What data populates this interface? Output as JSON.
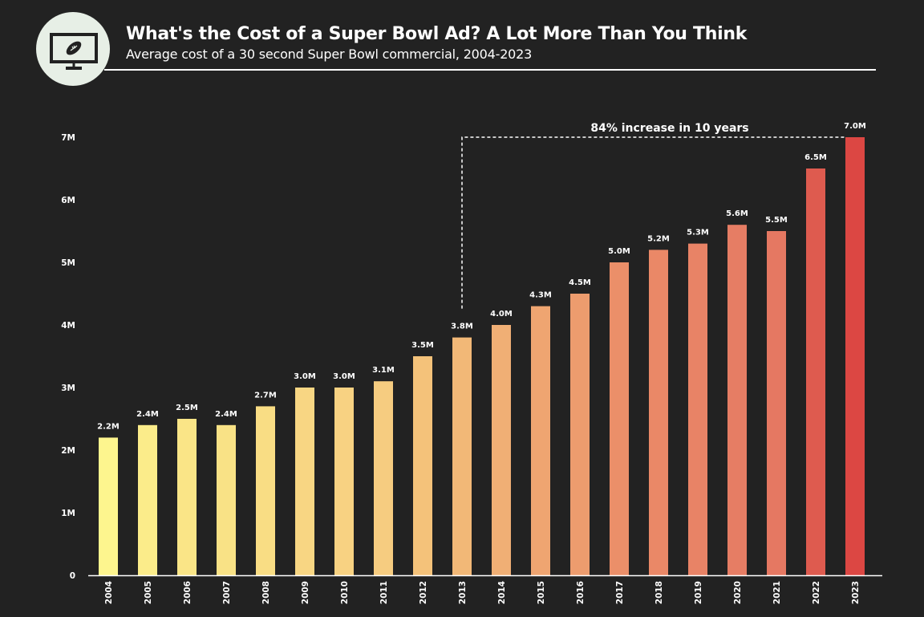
{
  "header": {
    "title": "What's the Cost of a Super Bowl Ad? A Lot More Than You Think",
    "subtitle": "Average cost of a 30 second Super Bowl commercial, 2004-2023",
    "logo_icon": "tv-football-icon"
  },
  "chart_data": {
    "type": "bar",
    "title": "What's the Cost of a Super Bowl Ad? A Lot More Than You Think",
    "subtitle": "Average cost of a 30 second Super Bowl commercial, 2004-2023",
    "xlabel": "",
    "ylabel": "",
    "categories": [
      "2004",
      "2005",
      "2006",
      "2007",
      "2008",
      "2009",
      "2010",
      "2011",
      "2012",
      "2013",
      "2014",
      "2015",
      "2016",
      "2017",
      "2018",
      "2019",
      "2020",
      "2021",
      "2022",
      "2023"
    ],
    "values": [
      2.2,
      2.4,
      2.5,
      2.4,
      2.7,
      3.0,
      3.0,
      3.1,
      3.5,
      3.8,
      4.0,
      4.3,
      4.5,
      5.0,
      5.2,
      5.3,
      5.6,
      5.5,
      6.5,
      7.0
    ],
    "data_labels": [
      "2.2M",
      "2.4M",
      "2.5M",
      "2.4M",
      "2.7M",
      "3.0M",
      "3.0M",
      "3.1M",
      "3.5M",
      "3.8M",
      "4.0M",
      "4.3M",
      "4.5M",
      "5.0M",
      "5.2M",
      "5.3M",
      "5.6M",
      "5.5M",
      "6.5M",
      "7.0M"
    ],
    "ylim": [
      0,
      7
    ],
    "yticks": [
      0,
      1,
      2,
      3,
      4,
      5,
      6,
      7
    ],
    "ytick_labels": [
      "0",
      "1M",
      "2M",
      "3M",
      "4M",
      "5M",
      "6M",
      "7M"
    ],
    "grid": false,
    "legend": "none",
    "bar_colors": [
      "#fdf58e",
      "#fbec8a",
      "#fae587",
      "#f9e286",
      "#f9dd84",
      "#f8d683",
      "#f8d282",
      "#f6cc80",
      "#f4c27a",
      "#f2b877",
      "#f0af75",
      "#efa571",
      "#ed9c6e",
      "#eb8f69",
      "#ea8867",
      "#e88366",
      "#e67d64",
      "#e57862",
      "#de5b4f",
      "#dc4743"
    ],
    "annotation": {
      "text": "84% increase in 10 years",
      "from_category": "2013",
      "to_category": "2023",
      "level": 7.0
    }
  }
}
